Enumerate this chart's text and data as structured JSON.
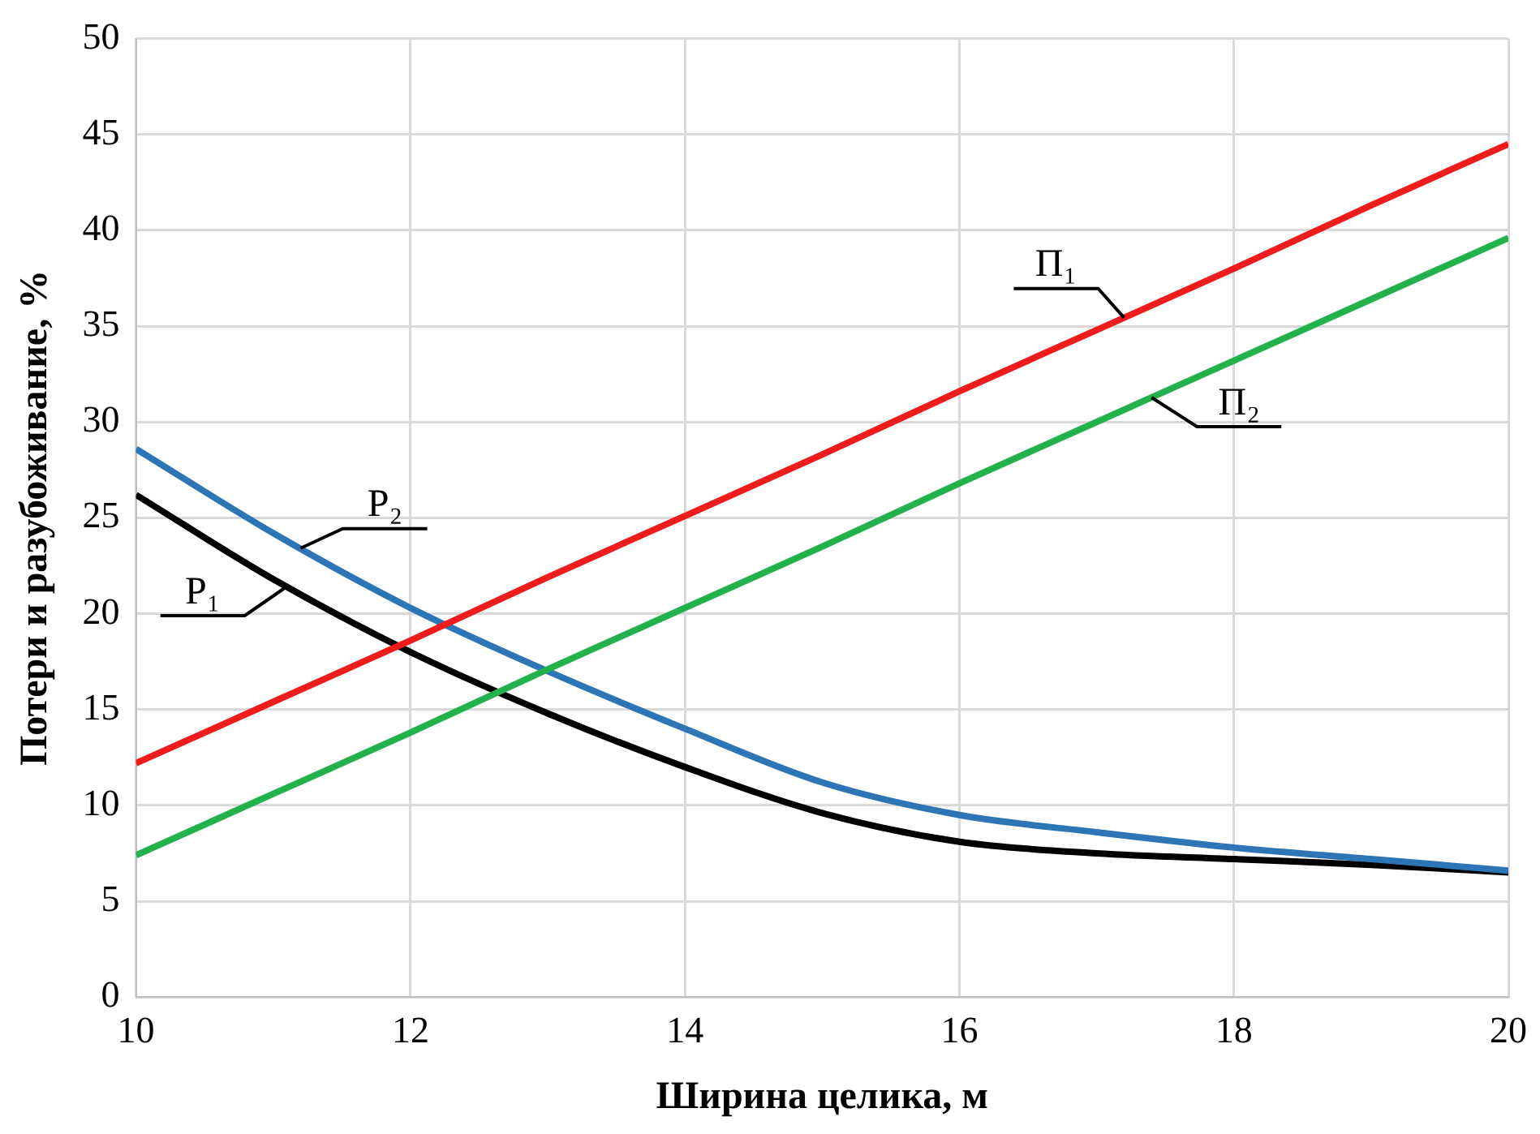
{
  "chart_data": {
    "type": "line",
    "xlabel": "Ширина целика, м",
    "ylabel": "Потери и разубоживание, %",
    "x": [
      10,
      11,
      12,
      13,
      14,
      15,
      16,
      17,
      18,
      19,
      20
    ],
    "series": [
      {
        "name": "П₁",
        "color": "#ee1c1c",
        "values": [
          12.2,
          15.4,
          18.6,
          21.9,
          25.1,
          28.3,
          31.6,
          34.8,
          38.0,
          41.3,
          44.5
        ]
      },
      {
        "name": "П₂",
        "color": "#22b14c",
        "values": [
          7.4,
          10.6,
          13.8,
          17.1,
          20.3,
          23.5,
          26.8,
          30.0,
          33.2,
          36.4,
          39.6
        ]
      },
      {
        "name": "P₂",
        "color": "#2e75b6",
        "values": [
          28.6,
          24.2,
          20.3,
          17.0,
          14.0,
          11.2,
          9.5,
          8.6,
          7.8,
          7.2,
          6.6
        ]
      },
      {
        "name": "P₁",
        "color": "#000000",
        "values": [
          26.2,
          21.8,
          18.0,
          14.8,
          12.0,
          9.6,
          8.1,
          7.5,
          7.2,
          6.9,
          6.5
        ]
      }
    ],
    "xlim": [
      10,
      20
    ],
    "xticks": [
      10,
      12,
      14,
      16,
      18,
      20
    ],
    "ylim": [
      0,
      50
    ],
    "yticks": [
      0,
      5,
      10,
      15,
      20,
      25,
      30,
      35,
      40,
      45,
      50
    ],
    "grid": true,
    "legend": false,
    "marker": "none",
    "line_style": "solid"
  }
}
